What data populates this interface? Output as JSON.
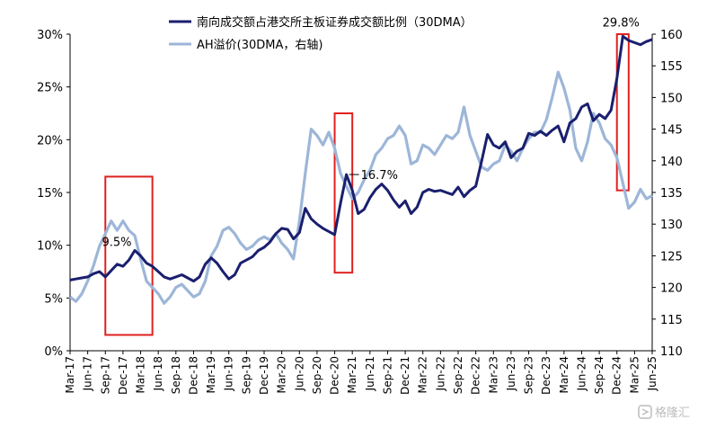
{
  "chart_data": {
    "type": "line",
    "title": "",
    "xlabel": "",
    "ylabel_left": "",
    "ylabel_right": "",
    "y_left": {
      "min": 0,
      "max": 30,
      "ticks": [
        "0%",
        "5%",
        "10%",
        "15%",
        "20%",
        "25%",
        "30%"
      ]
    },
    "y_right": {
      "min": 110,
      "max": 160,
      "ticks": [
        "110",
        "115",
        "120",
        "125",
        "130",
        "135",
        "140",
        "145",
        "150",
        "155",
        "160"
      ]
    },
    "x_range": [
      "2017-03",
      "2025-06"
    ],
    "x_ticks": [
      "Mar-17",
      "Jun-17",
      "Sep-17",
      "Dec-17",
      "Mar-18",
      "Jun-18",
      "Sep-18",
      "Dec-18",
      "Mar-19",
      "Jun-19",
      "Sep-19",
      "Dec-19",
      "Mar-20",
      "Jun-20",
      "Sep-20",
      "Dec-20",
      "Mar-21",
      "Jun-21",
      "Sep-21",
      "Dec-21",
      "Mar-22",
      "Jun-22",
      "Sep-22",
      "Dec-22",
      "Mar-23",
      "Jun-23",
      "Sep-23",
      "Dec-23",
      "Mar-24",
      "Jun-24",
      "Sep-24",
      "Dec-24",
      "Mar-25",
      "Jun-25"
    ],
    "grid": false,
    "legend_position": "top",
    "series": [
      {
        "name": "南向成交额占港交所主板证券成交额比例（30DMA）",
        "axis": "left",
        "color": "#1a1f6e",
        "unit": "%",
        "points": [
          [
            "2017-03",
            6.7
          ],
          [
            "2017-04",
            6.8
          ],
          [
            "2017-05",
            6.9
          ],
          [
            "2017-06",
            7.0
          ],
          [
            "2017-07",
            7.3
          ],
          [
            "2017-08",
            7.5
          ],
          [
            "2017-09",
            7.0
          ],
          [
            "2017-10",
            7.6
          ],
          [
            "2017-11",
            8.2
          ],
          [
            "2017-12",
            8.0
          ],
          [
            "2018-01",
            8.6
          ],
          [
            "2018-02",
            9.5
          ],
          [
            "2018-03",
            9.0
          ],
          [
            "2018-04",
            8.3
          ],
          [
            "2018-05",
            8.0
          ],
          [
            "2018-06",
            7.5
          ],
          [
            "2018-07",
            7.0
          ],
          [
            "2018-08",
            6.8
          ],
          [
            "2018-09",
            7.0
          ],
          [
            "2018-10",
            7.2
          ],
          [
            "2018-11",
            6.9
          ],
          [
            "2018-12",
            6.6
          ],
          [
            "2019-01",
            7.0
          ],
          [
            "2019-02",
            8.2
          ],
          [
            "2019-03",
            8.8
          ],
          [
            "2019-04",
            8.3
          ],
          [
            "2019-05",
            7.5
          ],
          [
            "2019-06",
            6.8
          ],
          [
            "2019-07",
            7.2
          ],
          [
            "2019-08",
            8.3
          ],
          [
            "2019-09",
            8.6
          ],
          [
            "2019-10",
            8.9
          ],
          [
            "2019-11",
            9.5
          ],
          [
            "2019-12",
            9.8
          ],
          [
            "2020-01",
            10.3
          ],
          [
            "2020-02",
            11.1
          ],
          [
            "2020-03",
            11.6
          ],
          [
            "2020-04",
            11.5
          ],
          [
            "2020-05",
            10.6
          ],
          [
            "2020-06",
            11.2
          ],
          [
            "2020-07",
            13.5
          ],
          [
            "2020-08",
            12.5
          ],
          [
            "2020-09",
            12.0
          ],
          [
            "2020-10",
            11.6
          ],
          [
            "2020-11",
            11.3
          ],
          [
            "2020-12",
            11.0
          ],
          [
            "2021-01",
            14.0
          ],
          [
            "2021-02",
            16.7
          ],
          [
            "2021-03",
            15.2
          ],
          [
            "2021-04",
            13.0
          ],
          [
            "2021-05",
            13.4
          ],
          [
            "2021-06",
            14.5
          ],
          [
            "2021-07",
            15.3
          ],
          [
            "2021-08",
            15.8
          ],
          [
            "2021-09",
            15.2
          ],
          [
            "2021-10",
            14.3
          ],
          [
            "2021-11",
            13.6
          ],
          [
            "2021-12",
            14.2
          ],
          [
            "2022-01",
            13.0
          ],
          [
            "2022-02",
            13.6
          ],
          [
            "2022-03",
            15.0
          ],
          [
            "2022-04",
            15.3
          ],
          [
            "2022-05",
            15.1
          ],
          [
            "2022-06",
            15.2
          ],
          [
            "2022-07",
            15.0
          ],
          [
            "2022-08",
            14.8
          ],
          [
            "2022-09",
            15.5
          ],
          [
            "2022-10",
            14.6
          ],
          [
            "2022-11",
            15.2
          ],
          [
            "2022-12",
            15.6
          ],
          [
            "2023-01",
            18.0
          ],
          [
            "2023-02",
            20.5
          ],
          [
            "2023-03",
            19.5
          ],
          [
            "2023-04",
            19.2
          ],
          [
            "2023-05",
            19.8
          ],
          [
            "2023-06",
            18.3
          ],
          [
            "2023-07",
            18.9
          ],
          [
            "2023-08",
            19.2
          ],
          [
            "2023-09",
            20.6
          ],
          [
            "2023-10",
            20.4
          ],
          [
            "2023-11",
            20.8
          ],
          [
            "2023-12",
            20.4
          ],
          [
            "2024-01",
            20.9
          ],
          [
            "2024-02",
            21.3
          ],
          [
            "2024-03",
            19.8
          ],
          [
            "2024-04",
            21.6
          ],
          [
            "2024-05",
            22.0
          ],
          [
            "2024-06",
            23.1
          ],
          [
            "2024-07",
            23.4
          ],
          [
            "2024-08",
            21.8
          ],
          [
            "2024-09",
            22.4
          ],
          [
            "2024-10",
            22.0
          ],
          [
            "2024-11",
            22.8
          ],
          [
            "2024-12",
            25.8
          ],
          [
            "2025-01",
            29.8
          ],
          [
            "2025-02",
            29.4
          ],
          [
            "2025-03",
            29.2
          ],
          [
            "2025-04",
            29.0
          ],
          [
            "2025-05",
            29.3
          ],
          [
            "2025-06",
            29.5
          ]
        ]
      },
      {
        "name": "AH溢价(30DMA，右轴)",
        "axis": "right",
        "color": "#9db6d8",
        "unit": "",
        "points": [
          [
            "2017-03",
            118.5
          ],
          [
            "2017-04",
            117.8
          ],
          [
            "2017-05",
            119.0
          ],
          [
            "2017-06",
            121.0
          ],
          [
            "2017-07",
            123.5
          ],
          [
            "2017-08",
            126.5
          ],
          [
            "2017-09",
            128.5
          ],
          [
            "2017-10",
            130.5
          ],
          [
            "2017-11",
            129.0
          ],
          [
            "2017-12",
            130.5
          ],
          [
            "2018-01",
            129.0
          ],
          [
            "2018-02",
            128.2
          ],
          [
            "2018-03",
            124.5
          ],
          [
            "2018-04",
            121.0
          ],
          [
            "2018-05",
            120.0
          ],
          [
            "2018-06",
            119.0
          ],
          [
            "2018-07",
            117.5
          ],
          [
            "2018-08",
            118.5
          ],
          [
            "2018-09",
            120.0
          ],
          [
            "2018-10",
            120.5
          ],
          [
            "2018-11",
            119.5
          ],
          [
            "2018-12",
            118.5
          ],
          [
            "2019-01",
            119.0
          ],
          [
            "2019-02",
            121.0
          ],
          [
            "2019-03",
            125.0
          ],
          [
            "2019-04",
            126.5
          ],
          [
            "2019-05",
            129.0
          ],
          [
            "2019-06",
            129.5
          ],
          [
            "2019-07",
            128.5
          ],
          [
            "2019-08",
            127.0
          ],
          [
            "2019-09",
            126.0
          ],
          [
            "2019-10",
            126.5
          ],
          [
            "2019-11",
            127.5
          ],
          [
            "2019-12",
            128.0
          ],
          [
            "2020-01",
            127.5
          ],
          [
            "2020-02",
            128.5
          ],
          [
            "2020-03",
            127.0
          ],
          [
            "2020-04",
            126.0
          ],
          [
            "2020-05",
            124.5
          ],
          [
            "2020-06",
            130.5
          ],
          [
            "2020-07",
            138.0
          ],
          [
            "2020-08",
            145.0
          ],
          [
            "2020-09",
            144.0
          ],
          [
            "2020-10",
            142.5
          ],
          [
            "2020-11",
            144.5
          ],
          [
            "2020-12",
            142.0
          ],
          [
            "2021-01",
            138.0
          ],
          [
            "2021-02",
            136.0
          ],
          [
            "2021-03",
            134.0
          ],
          [
            "2021-04",
            135.0
          ],
          [
            "2021-05",
            137.0
          ],
          [
            "2021-06",
            138.5
          ],
          [
            "2021-07",
            141.0
          ],
          [
            "2021-08",
            142.0
          ],
          [
            "2021-09",
            143.5
          ],
          [
            "2021-10",
            144.0
          ],
          [
            "2021-11",
            145.5
          ],
          [
            "2021-12",
            144.0
          ],
          [
            "2022-01",
            139.5
          ],
          [
            "2022-02",
            140.0
          ],
          [
            "2022-03",
            142.5
          ],
          [
            "2022-04",
            142.0
          ],
          [
            "2022-05",
            141.0
          ],
          [
            "2022-06",
            142.5
          ],
          [
            "2022-07",
            144.0
          ],
          [
            "2022-08",
            143.5
          ],
          [
            "2022-09",
            144.5
          ],
          [
            "2022-10",
            148.5
          ],
          [
            "2022-11",
            144.0
          ],
          [
            "2022-12",
            141.5
          ],
          [
            "2023-01",
            139.0
          ],
          [
            "2023-02",
            138.5
          ],
          [
            "2023-03",
            139.5
          ],
          [
            "2023-04",
            140.0
          ],
          [
            "2023-05",
            142.5
          ],
          [
            "2023-06",
            141.5
          ],
          [
            "2023-07",
            140.0
          ],
          [
            "2023-08",
            142.0
          ],
          [
            "2023-09",
            143.5
          ],
          [
            "2023-10",
            144.5
          ],
          [
            "2023-11",
            144.5
          ],
          [
            "2023-12",
            146.5
          ],
          [
            "2024-01",
            150.0
          ],
          [
            "2024-02",
            154.0
          ],
          [
            "2024-03",
            151.5
          ],
          [
            "2024-04",
            148.0
          ],
          [
            "2024-05",
            142.0
          ],
          [
            "2024-06",
            140.0
          ],
          [
            "2024-07",
            143.0
          ],
          [
            "2024-08",
            147.5
          ],
          [
            "2024-09",
            146.0
          ],
          [
            "2024-10",
            143.5
          ],
          [
            "2024-11",
            142.5
          ],
          [
            "2024-12",
            140.5
          ],
          [
            "2025-01",
            136.5
          ],
          [
            "2025-02",
            132.5
          ],
          [
            "2025-03",
            133.5
          ],
          [
            "2025-04",
            135.5
          ],
          [
            "2025-05",
            134.0
          ],
          [
            "2025-06",
            134.5
          ]
        ]
      }
    ],
    "annotations": [
      {
        "text": "9.5%",
        "x": "2018-02",
        "y": 9.5,
        "axis": "left"
      },
      {
        "text": "16.7%",
        "x": "2021-02",
        "y": 16.7,
        "axis": "left"
      },
      {
        "text": "29.8%",
        "x": "2025-01",
        "y": 29.8,
        "axis": "left"
      }
    ],
    "highlight_boxes": [
      {
        "x0": "2017-09",
        "x1": "2018-05",
        "y0": 1.5,
        "y1": 16.5,
        "axis": "left",
        "color": "#e02020"
      },
      {
        "x0": "2020-12",
        "x1": "2021-03",
        "y0": 7.4,
        "y1": 22.5,
        "axis": "left",
        "color": "#e02020"
      },
      {
        "x0": "2024-12",
        "x1": "2025-02",
        "y0": 15.2,
        "y1": 30.0,
        "axis": "left",
        "color": "#e02020"
      }
    ]
  },
  "watermark": {
    "text": "格隆汇",
    "icon": "gelonghui-logo-icon"
  }
}
